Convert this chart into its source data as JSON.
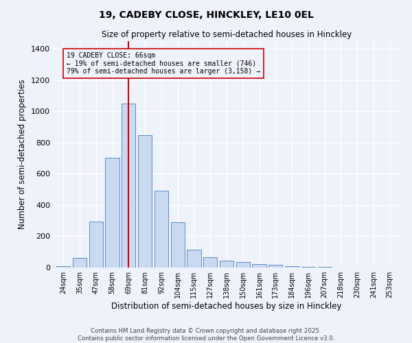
{
  "title": "19, CADEBY CLOSE, HINCKLEY, LE10 0EL",
  "subtitle": "Size of property relative to semi-detached houses in Hinckley",
  "xlabel": "Distribution of semi-detached houses by size in Hinckley",
  "ylabel": "Number of semi-detached properties",
  "categories": [
    "24sqm",
    "35sqm",
    "47sqm",
    "58sqm",
    "69sqm",
    "81sqm",
    "92sqm",
    "104sqm",
    "115sqm",
    "127sqm",
    "138sqm",
    "150sqm",
    "161sqm",
    "173sqm",
    "184sqm",
    "196sqm",
    "207sqm",
    "218sqm",
    "230sqm",
    "241sqm",
    "253sqm"
  ],
  "values": [
    8,
    60,
    295,
    705,
    1050,
    850,
    490,
    290,
    115,
    65,
    42,
    35,
    20,
    17,
    8,
    3,
    3,
    2,
    0,
    0,
    0
  ],
  "bar_color": "#c9d9f0",
  "bar_edge_color": "#5b8ccc",
  "bar_edge_width": 0.7,
  "vline_x_index": 4,
  "vline_color": "#cc0000",
  "vline_label": "19 CADEBY CLOSE: 66sqm",
  "annotation_smaller_pct": "19% of semi-detached houses are smaller (746)",
  "annotation_larger_pct": "79% of semi-detached houses are larger (3,158)",
  "ylim": [
    0,
    1450
  ],
  "yticks": [
    0,
    200,
    400,
    600,
    800,
    1000,
    1200,
    1400
  ],
  "bg_color": "#eef2fb",
  "grid_color": "#ffffff",
  "footer_line1": "Contains HM Land Registry data © Crown copyright and database right 2025.",
  "footer_line2": "Contains public sector information licensed under the Open Government Licence v3.0."
}
